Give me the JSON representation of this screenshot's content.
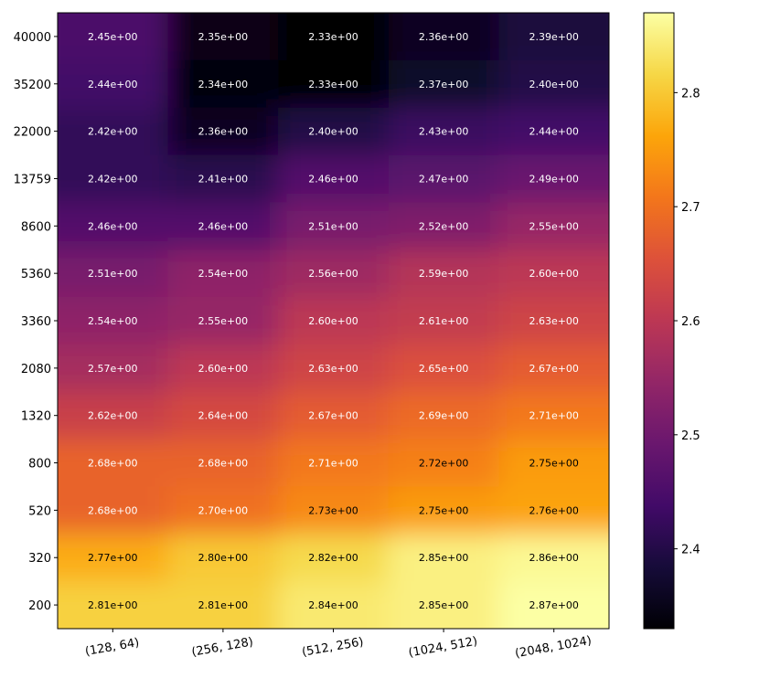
{
  "chart_data": {
    "type": "heatmap",
    "colormap": "inferno",
    "interpolation": "smooth",
    "x_categories": [
      "(128, 64)",
      "(256, 128)",
      "(512, 256)",
      "(1024, 512)",
      "(2048, 1024)"
    ],
    "y_categories": [
      "40000",
      "35200",
      "22000",
      "13759",
      "8600",
      "5360",
      "3360",
      "2080",
      "1320",
      "800",
      "520",
      "320",
      "200"
    ],
    "values": [
      [
        2.45,
        2.35,
        2.33,
        2.36,
        2.39
      ],
      [
        2.44,
        2.34,
        2.33,
        2.37,
        2.4
      ],
      [
        2.42,
        2.36,
        2.4,
        2.43,
        2.44
      ],
      [
        2.42,
        2.41,
        2.46,
        2.47,
        2.49
      ],
      [
        2.46,
        2.46,
        2.51,
        2.52,
        2.55
      ],
      [
        2.51,
        2.54,
        2.56,
        2.59,
        2.6
      ],
      [
        2.54,
        2.55,
        2.6,
        2.61,
        2.63
      ],
      [
        2.57,
        2.6,
        2.63,
        2.65,
        2.67
      ],
      [
        2.62,
        2.64,
        2.67,
        2.69,
        2.71
      ],
      [
        2.68,
        2.68,
        2.71,
        2.72,
        2.75
      ],
      [
        2.68,
        2.7,
        2.73,
        2.75,
        2.76
      ],
      [
        2.77,
        2.8,
        2.82,
        2.85,
        2.86
      ],
      [
        2.81,
        2.81,
        2.84,
        2.85,
        2.87
      ]
    ],
    "cell_labels": [
      [
        "2.45e+00",
        "2.35e+00",
        "2.33e+00",
        "2.36e+00",
        "2.39e+00"
      ],
      [
        "2.44e+00",
        "2.34e+00",
        "2.33e+00",
        "2.37e+00",
        "2.40e+00"
      ],
      [
        "2.42e+00",
        "2.36e+00",
        "2.40e+00",
        "2.43e+00",
        "2.44e+00"
      ],
      [
        "2.42e+00",
        "2.41e+00",
        "2.46e+00",
        "2.47e+00",
        "2.49e+00"
      ],
      [
        "2.46e+00",
        "2.46e+00",
        "2.51e+00",
        "2.52e+00",
        "2.55e+00"
      ],
      [
        "2.51e+00",
        "2.54e+00",
        "2.56e+00",
        "2.59e+00",
        "2.60e+00"
      ],
      [
        "2.54e+00",
        "2.55e+00",
        "2.60e+00",
        "2.61e+00",
        "2.63e+00"
      ],
      [
        "2.57e+00",
        "2.60e+00",
        "2.63e+00",
        "2.65e+00",
        "2.67e+00"
      ],
      [
        "2.62e+00",
        "2.64e+00",
        "2.67e+00",
        "2.69e+00",
        "2.71e+00"
      ],
      [
        "2.68e+00",
        "2.68e+00",
        "2.71e+00",
        "2.72e+00",
        "2.75e+00"
      ],
      [
        "2.68e+00",
        "2.70e+00",
        "2.73e+00",
        "2.75e+00",
        "2.76e+00"
      ],
      [
        "2.77e+00",
        "2.80e+00",
        "2.82e+00",
        "2.85e+00",
        "2.86e+00"
      ],
      [
        "2.81e+00",
        "2.81e+00",
        "2.84e+00",
        "2.85e+00",
        "2.87e+00"
      ]
    ],
    "colorbar": {
      "range": [
        2.33,
        2.87
      ],
      "ticks": [
        2.4,
        2.5,
        2.6,
        2.7,
        2.8
      ],
      "tick_labels": [
        "2.4",
        "2.5",
        "2.6",
        "2.7",
        "2.8"
      ]
    },
    "title": "",
    "xlabel": "",
    "ylabel": ""
  }
}
